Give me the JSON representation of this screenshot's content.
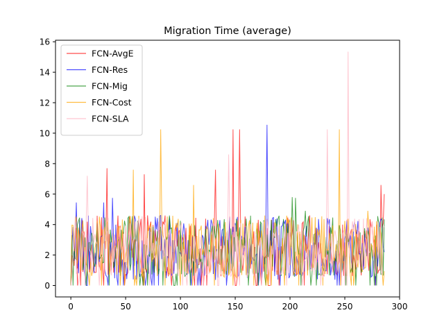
{
  "chart_data": {
    "type": "line",
    "title": "Migration Time (average)",
    "xlabel": "",
    "ylabel": "",
    "xlim": [
      -14,
      300
    ],
    "ylim": [
      -0.75,
      16.1
    ],
    "xticks": [
      0,
      50,
      100,
      150,
      200,
      250,
      300
    ],
    "yticks": [
      0,
      2,
      4,
      6,
      8,
      10,
      12,
      14,
      16
    ],
    "grid": false,
    "legend_position": "top-left",
    "n_points": 287,
    "series": [
      {
        "name": "FCN-AvgE",
        "color": "#ff0000",
        "alpha": 0.7,
        "peaks": [
          [
            33,
            7.7
          ],
          [
            67,
            7.3
          ],
          [
            132,
            7.6
          ],
          [
            148,
            10.25
          ],
          [
            154,
            10.25
          ],
          [
            283,
            6.6
          ],
          [
            286,
            6.0
          ]
        ],
        "low": 0.6,
        "high": 4.6
      },
      {
        "name": "FCN-Res",
        "color": "#0000ff",
        "alpha": 0.7,
        "peaks": [
          [
            5,
            5.45
          ],
          [
            30,
            5.45
          ],
          [
            38,
            5.75
          ],
          [
            179,
            10.55
          ]
        ],
        "low": 0.3,
        "high": 4.6
      },
      {
        "name": "FCN-Mig",
        "color": "#008000",
        "alpha": 0.7,
        "peaks": [
          [
            202,
            5.8
          ],
          [
            205,
            5.75
          ],
          [
            214,
            4.9
          ]
        ],
        "low": 0.5,
        "high": 4.6
      },
      {
        "name": "FCN-Cost",
        "color": "#ffa500",
        "alpha": 0.75,
        "peaks": [
          [
            57,
            7.6
          ],
          [
            82,
            10.25
          ],
          [
            112,
            6.6
          ],
          [
            245,
            10.25
          ],
          [
            271,
            4.9
          ]
        ],
        "low": 0.5,
        "high": 4.6
      },
      {
        "name": "FCN-SLA",
        "color": "#ffc0cb",
        "alpha": 0.9,
        "peaks": [
          [
            15,
            7.2
          ],
          [
            144,
            8.6
          ],
          [
            234,
            10.25
          ],
          [
            253,
            15.35
          ]
        ],
        "low": 0.5,
        "high": 4.6
      }
    ]
  }
}
